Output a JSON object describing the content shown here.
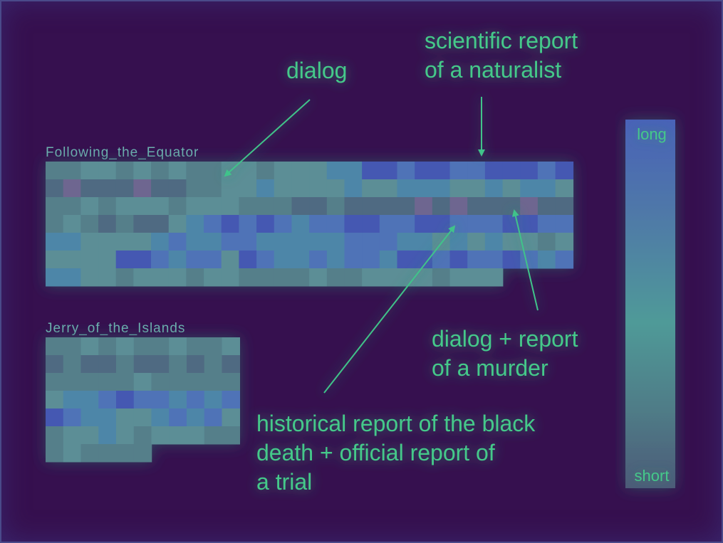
{
  "chart_data": {
    "type": "heatmap",
    "cell_size": 25,
    "colorbar": {
      "top_label": "long",
      "bottom_label": "short"
    },
    "palette": [
      "#5a4f7a",
      "#6e6690",
      "#4f6a82",
      "#557f8a",
      "#5b8e96",
      "#4e86a8",
      "#4f73b7",
      "#4459b2",
      "#5577c0",
      "#6a84b8"
    ],
    "texts": [
      {
        "title": "Following_the_Equator",
        "row_lengths": [
          30,
          30,
          30,
          30,
          30,
          30,
          26
        ],
        "values": [
          [
            3,
            3,
            4,
            4,
            3,
            4,
            3,
            4,
            3,
            3,
            4,
            4,
            3,
            4,
            4,
            4,
            5,
            5,
            7,
            7,
            6,
            7,
            7,
            6,
            6,
            7,
            7,
            7,
            6,
            7
          ],
          [
            2,
            1,
            2,
            2,
            2,
            1,
            2,
            2,
            3,
            3,
            4,
            4,
            5,
            4,
            4,
            4,
            4,
            5,
            4,
            4,
            5,
            5,
            5,
            4,
            4,
            5,
            4,
            5,
            5,
            4
          ],
          [
            3,
            3,
            4,
            3,
            4,
            4,
            4,
            3,
            4,
            4,
            4,
            3,
            3,
            3,
            2,
            2,
            3,
            2,
            2,
            2,
            2,
            1,
            2,
            1,
            2,
            2,
            2,
            1,
            2,
            2
          ],
          [
            3,
            4,
            3,
            2,
            3,
            2,
            2,
            4,
            5,
            6,
            7,
            6,
            7,
            6,
            5,
            6,
            6,
            7,
            7,
            6,
            6,
            7,
            7,
            6,
            6,
            6,
            7,
            7,
            6,
            6
          ],
          [
            5,
            5,
            4,
            4,
            4,
            4,
            5,
            6,
            5,
            5,
            6,
            6,
            5,
            5,
            5,
            5,
            5,
            6,
            6,
            6,
            5,
            5,
            4,
            5,
            4,
            5,
            4,
            4,
            3,
            4
          ],
          [
            4,
            4,
            4,
            4,
            7,
            7,
            6,
            5,
            6,
            6,
            4,
            7,
            6,
            5,
            5,
            6,
            5,
            6,
            6,
            5,
            7,
            7,
            6,
            7,
            6,
            6,
            7,
            6,
            5,
            6
          ],
          [
            5,
            5,
            4,
            4,
            3,
            4,
            4,
            4,
            3,
            4,
            4,
            3,
            3,
            3,
            3,
            4,
            3,
            3,
            4,
            4,
            4,
            4,
            3,
            4,
            4,
            4
          ]
        ]
      },
      {
        "title": "Jerry_of_the_Islands",
        "row_lengths": [
          11,
          11,
          11,
          11,
          11,
          11,
          6
        ],
        "values": [
          [
            3,
            3,
            4,
            3,
            4,
            3,
            3,
            4,
            3,
            3,
            4
          ],
          [
            2,
            3,
            2,
            2,
            3,
            2,
            2,
            3,
            2,
            3,
            2
          ],
          [
            3,
            3,
            3,
            3,
            3,
            4,
            3,
            3,
            3,
            3,
            3
          ],
          [
            4,
            5,
            5,
            6,
            7,
            6,
            6,
            5,
            6,
            5,
            6
          ],
          [
            7,
            6,
            5,
            5,
            4,
            4,
            5,
            6,
            5,
            6,
            4
          ],
          [
            3,
            4,
            4,
            5,
            4,
            3,
            4,
            4,
            4,
            3,
            3
          ],
          [
            3,
            4,
            3,
            3,
            3,
            3
          ]
        ]
      }
    ],
    "annotations": [
      {
        "id": "dialog",
        "lines": [
          "dialog"
        ]
      },
      {
        "id": "naturalist",
        "lines": [
          "scientific report",
          "of a naturalist"
        ]
      },
      {
        "id": "murder",
        "lines": [
          "dialog + report",
          "of a murder"
        ]
      },
      {
        "id": "blackdeath",
        "lines": [
          "historical report of the black",
          "death + official report of",
          "a trial"
        ]
      }
    ]
  }
}
